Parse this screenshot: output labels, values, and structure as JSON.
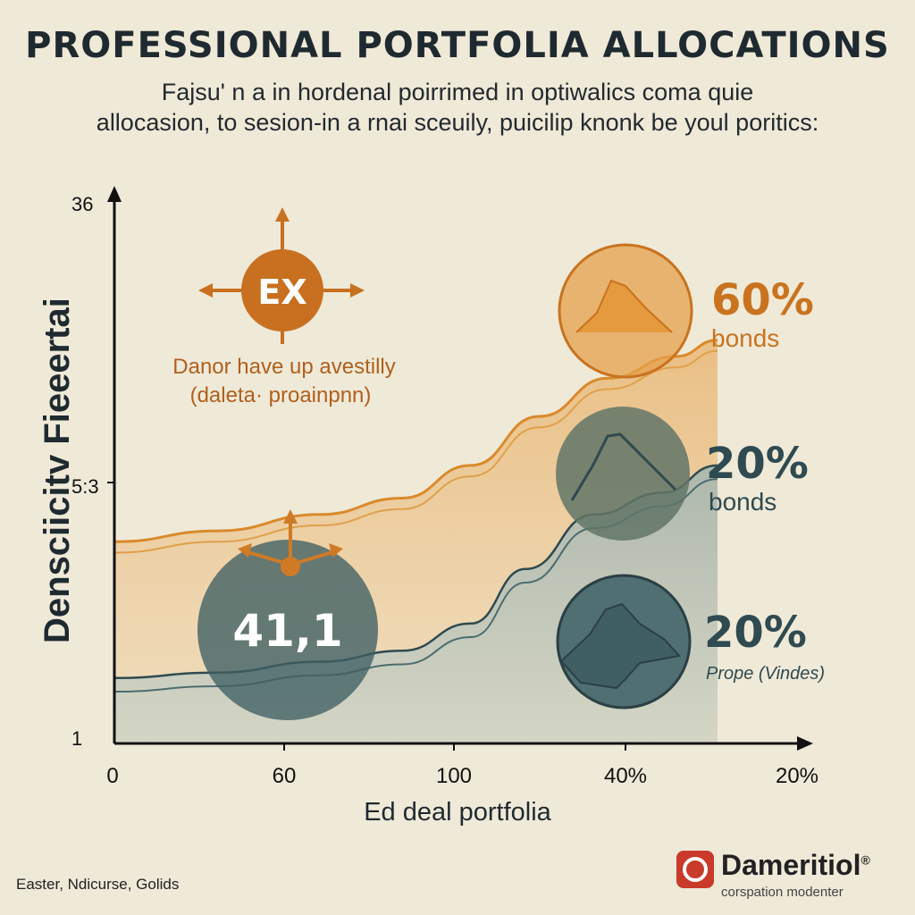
{
  "title": "PROFESSIONAL PORTFOLIA ALLOCATIONS",
  "subtitle_lines": [
    "Fajsu' n a in hordenal poirrimed in optiwalics coma quie",
    "allocasion, to sesion-in a rnai sceuily, puicilip knonk be youl poritics:"
  ],
  "footer_left": "Easter, Ndicurse, Golids",
  "brand": {
    "name": "Dameritiol",
    "registered": "®",
    "tagline": "corspation modenter"
  },
  "colors": {
    "background": "#efe9d8",
    "orange": "#d98a2a",
    "teal": "#3f5f63",
    "text": "#1f2a30"
  },
  "chart_data": {
    "type": "area",
    "ylabel": "Densciicitv Fieeertai",
    "xlabel": "Ed deal portfolia",
    "x_ticks": [
      "0",
      "60",
      "100",
      "40%",
      "20%"
    ],
    "y_ticks": [
      "1",
      "5:3",
      "36"
    ],
    "series": [
      {
        "color": "#d98a2a",
        "points": [
          [
            0,
            37
          ],
          [
            0.15,
            39
          ],
          [
            0.3,
            42
          ],
          [
            0.42,
            45
          ],
          [
            0.52,
            51
          ],
          [
            0.62,
            60
          ],
          [
            0.72,
            67
          ],
          [
            0.82,
            71
          ],
          [
            0.88,
            74
          ]
        ]
      },
      {
        "color": "#3f5f63",
        "points": [
          [
            0,
            12
          ],
          [
            0.15,
            13
          ],
          [
            0.3,
            15
          ],
          [
            0.42,
            17
          ],
          [
            0.52,
            22
          ],
          [
            0.6,
            32
          ],
          [
            0.7,
            42
          ],
          [
            0.8,
            46
          ],
          [
            0.88,
            51
          ]
        ]
      }
    ],
    "annotations": [
      {
        "label": "EX",
        "icon": "compass-arrows-icon",
        "note_lines": [
          "Danor have up avestilly",
          "(daleta· proainpnn)"
        ]
      },
      {
        "label": "41,1",
        "icon": "branch-arrows-icon"
      }
    ],
    "allocations": [
      {
        "percent": "60%",
        "label": "bonds",
        "color": "#d98a2a",
        "icon": "mountain-icon"
      },
      {
        "percent": "20%",
        "label": "bonds",
        "color": "#3f5f63",
        "icon": "mountain-icon"
      },
      {
        "percent": "20%",
        "label": "Prope (Vindes)",
        "color": "#3f5f63",
        "icon": "mountain-icon"
      }
    ]
  }
}
